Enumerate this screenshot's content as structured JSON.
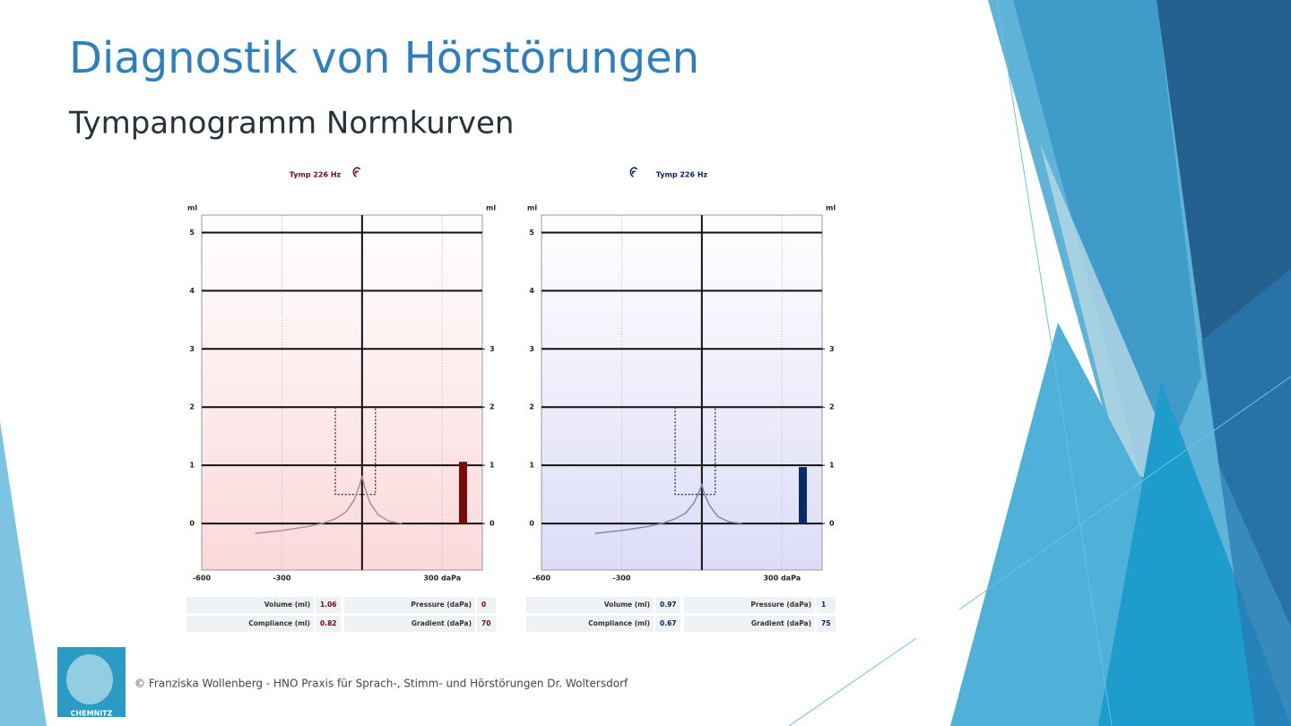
{
  "title": "Diagnostik von Hörstörungen",
  "subtitle": "Tympanogramm Normkurven",
  "footer": "© Franziska Wollenberg - HNO Praxis für Sprach-, Stimm- und Hörstörungen Dr. Woltersdorf",
  "logo": "CHEMNITZ",
  "chart_data": [
    {
      "type": "line",
      "title": "Tymp 226 Hz",
      "y_label": "ml",
      "xlim": [
        -600,
        450
      ],
      "ylim": [
        -0.8,
        5.3
      ],
      "xticks": [
        -600,
        -300,
        {
          "value": 300,
          "label": "300 daPa"
        }
      ],
      "yticks": [
        0,
        1,
        2,
        3,
        4,
        5
      ],
      "y2ticks": [
        0,
        1,
        2,
        3
      ],
      "x": [
        -400,
        -300,
        -200,
        -150,
        -100,
        -60,
        -30,
        -10,
        0,
        10,
        30,
        60,
        100,
        150
      ],
      "series": [
        {
          "color": "#a89098",
          "values": [
            -0.17,
            -0.12,
            -0.05,
            0,
            0.08,
            0.2,
            0.4,
            0.65,
            0.82,
            0.62,
            0.35,
            0.15,
            0.04,
            0
          ]
        }
      ],
      "norm_box": {
        "x": [
          -100,
          50
        ],
        "y": [
          0.5,
          2
        ]
      },
      "bar_color": "#7a0a0a",
      "stats": [
        {
          "label": "Volume (ml)",
          "value": 1.06
        },
        {
          "label": "Pressure (daPa)",
          "value": 0
        },
        {
          "label": "Compliance (ml)",
          "value": 0.82
        },
        {
          "label": "Gradient (daPa)",
          "value": 70
        }
      ]
    },
    {
      "type": "line",
      "title": "Tymp 226 Hz",
      "y_label": "ml",
      "xlim": [
        -600,
        450
      ],
      "ylim": [
        -0.8,
        5.3
      ],
      "xticks": [
        -600,
        -300,
        {
          "value": 300,
          "label": "300 daPa"
        }
      ],
      "yticks": [
        0,
        1,
        2,
        3,
        4,
        5
      ],
      "y2ticks": [
        0,
        1,
        2,
        3
      ],
      "x": [
        -400,
        -300,
        -200,
        -150,
        -100,
        -60,
        -30,
        -10,
        0,
        10,
        30,
        60,
        100,
        150
      ],
      "series": [
        {
          "color": "#7890a8",
          "values": [
            -0.17,
            -0.12,
            -0.05,
            0,
            0.08,
            0.18,
            0.35,
            0.55,
            0.67,
            0.5,
            0.3,
            0.12,
            0.03,
            0
          ]
        }
      ],
      "norm_box": {
        "x": [
          -100,
          50
        ],
        "y": [
          0.5,
          2
        ]
      },
      "bar_color": "#0a2a6a",
      "stats": [
        {
          "label": "Volume (ml)",
          "value": 0.97
        },
        {
          "label": "Pressure (daPa)",
          "value": 1
        },
        {
          "label": "Compliance (ml)",
          "value": 0.67
        },
        {
          "label": "Gradient (daPa)",
          "value": 75
        }
      ]
    }
  ]
}
